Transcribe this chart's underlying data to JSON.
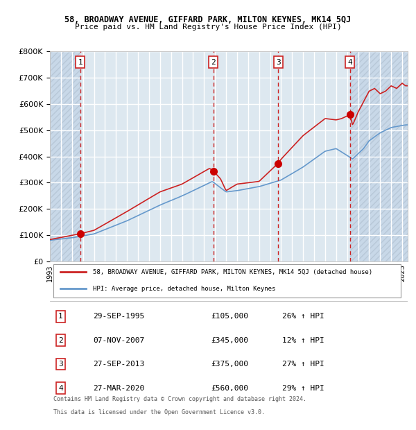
{
  "title_line1": "58, BROADWAY AVENUE, GIFFARD PARK, MILTON KEYNES, MK14 5QJ",
  "title_line2": "Price paid vs. HM Land Registry's House Price Index (HPI)",
  "transactions": [
    {
      "num": 1,
      "date": "29-SEP-1995",
      "price": 105000,
      "pct": "26%",
      "dir": "↑",
      "x_year": 1995.75
    },
    {
      "num": 2,
      "date": "07-NOV-2007",
      "price": 345000,
      "pct": "12%",
      "dir": "↑",
      "x_year": 2007.85
    },
    {
      "num": 3,
      "date": "27-SEP-2013",
      "price": 375000,
      "pct": "27%",
      "dir": "↑",
      "x_year": 2013.75
    },
    {
      "num": 4,
      "date": "27-MAR-2020",
      "price": 560000,
      "pct": "29%",
      "dir": "↑",
      "x_year": 2020.25
    }
  ],
  "legend_line1": "58, BROADWAY AVENUE, GIFFARD PARK, MILTON KEYNES, MK14 5QJ (detached house)",
  "legend_line2": "HPI: Average price, detached house, Milton Keynes",
  "footer_line1": "Contains HM Land Registry data © Crown copyright and database right 2024.",
  "footer_line2": "This data is licensed under the Open Government Licence v3.0.",
  "hpi_color": "#6699cc",
  "price_color": "#cc2222",
  "dot_color": "#cc0000",
  "bg_plot": "#dde8f0",
  "bg_hatch": "#c8d8e8",
  "grid_color": "#ffffff",
  "vline_color": "#cc2222",
  "ylim": [
    0,
    800000
  ],
  "xlim_start": 1993.0,
  "xlim_end": 2025.5,
  "xticks": [
    1993,
    1994,
    1995,
    1996,
    1997,
    1998,
    1999,
    2000,
    2001,
    2002,
    2003,
    2004,
    2005,
    2006,
    2007,
    2008,
    2009,
    2010,
    2011,
    2012,
    2013,
    2014,
    2015,
    2016,
    2017,
    2018,
    2019,
    2020,
    2021,
    2022,
    2023,
    2024,
    2025
  ],
  "yticks": [
    0,
    100000,
    200000,
    300000,
    400000,
    500000,
    600000,
    700000,
    800000
  ],
  "hpi_target_x": [
    1993.0,
    1995.0,
    1997.0,
    2000.0,
    2003.0,
    2005.0,
    2007.75,
    2009.0,
    2010.0,
    2012.0,
    2014.0,
    2016.0,
    2018.0,
    2019.0,
    2020.5,
    2021.5,
    2022.0,
    2023.0,
    2024.0,
    2025.3
  ],
  "hpi_target_y": [
    80000,
    90000,
    105000,
    155000,
    215000,
    250000,
    305000,
    265000,
    270000,
    285000,
    310000,
    360000,
    420000,
    430000,
    390000,
    430000,
    460000,
    490000,
    510000,
    520000
  ],
  "price_target_x": [
    1993.0,
    1995.75,
    1997.0,
    2000.0,
    2003.0,
    2005.0,
    2007.5,
    2007.85,
    2008.5,
    2009.0,
    2010.0,
    2012.0,
    2013.75,
    2014.0,
    2016.0,
    2018.0,
    2019.0,
    2019.5,
    2020.25,
    2020.5,
    2021.0,
    2021.5,
    2022.0,
    2022.5,
    2023.0,
    2023.5,
    2024.0,
    2024.5,
    2025.0,
    2025.3
  ],
  "price_target_y": [
    83000,
    105000,
    118000,
    190000,
    265000,
    295000,
    355000,
    345000,
    315000,
    270000,
    295000,
    305000,
    375000,
    390000,
    480000,
    545000,
    540000,
    545000,
    560000,
    520000,
    570000,
    610000,
    650000,
    660000,
    640000,
    650000,
    670000,
    660000,
    680000,
    670000
  ]
}
